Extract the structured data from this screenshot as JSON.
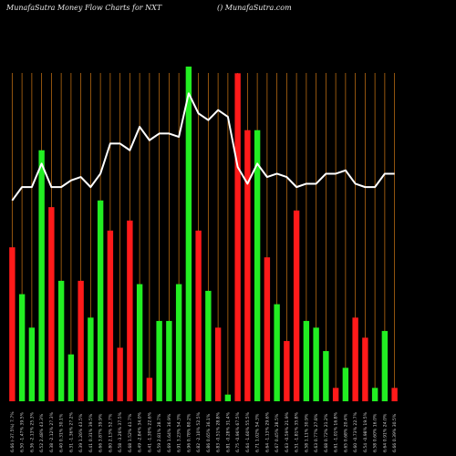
{
  "header": {
    "left": "MunafaSutra  Money Flow  Charts for NXT",
    "right": "() MunafaSutra.com"
  },
  "chart_data": {
    "type": "bar",
    "title": "MunafaSutra  Money Flow  Charts for NXT",
    "grid": "vertical",
    "ylim": [
      0,
      100
    ],
    "colors": {
      "up": "#22ee22",
      "down": "#ff1a1a",
      "line": "#ffffff",
      "grid": "#b86a12",
      "background": "#000000"
    },
    "bars": [
      {
        "h": 46,
        "c": "down"
      },
      {
        "h": 32,
        "c": "up"
      },
      {
        "h": 22,
        "c": "up"
      },
      {
        "h": 75,
        "c": "up"
      },
      {
        "h": 58,
        "c": "down"
      },
      {
        "h": 36,
        "c": "up"
      },
      {
        "h": 14,
        "c": "up"
      },
      {
        "h": 36,
        "c": "down"
      },
      {
        "h": 25,
        "c": "up"
      },
      {
        "h": 60,
        "c": "up"
      },
      {
        "h": 51,
        "c": "down"
      },
      {
        "h": 16,
        "c": "down"
      },
      {
        "h": 54,
        "c": "down"
      },
      {
        "h": 35,
        "c": "up"
      },
      {
        "h": 7,
        "c": "down"
      },
      {
        "h": 24,
        "c": "up"
      },
      {
        "h": 24,
        "c": "up"
      },
      {
        "h": 35,
        "c": "up"
      },
      {
        "h": 100,
        "c": "up"
      },
      {
        "h": 51,
        "c": "down"
      },
      {
        "h": 33,
        "c": "up"
      },
      {
        "h": 22,
        "c": "down"
      },
      {
        "h": 2,
        "c": "up"
      },
      {
        "h": 98,
        "c": "down"
      },
      {
        "h": 81,
        "c": "down"
      },
      {
        "h": 81,
        "c": "up"
      },
      {
        "h": 43,
        "c": "down"
      },
      {
        "h": 29,
        "c": "up"
      },
      {
        "h": 18,
        "c": "down"
      },
      {
        "h": 57,
        "c": "down"
      },
      {
        "h": 24,
        "c": "up"
      },
      {
        "h": 22,
        "c": "up"
      },
      {
        "h": 15,
        "c": "up"
      },
      {
        "h": 4,
        "c": "down"
      },
      {
        "h": 10,
        "c": "up"
      },
      {
        "h": 25,
        "c": "down"
      },
      {
        "h": 19,
        "c": "down"
      },
      {
        "h": 4,
        "c": "up"
      },
      {
        "h": 21,
        "c": "up"
      },
      {
        "h": 4,
        "c": "down"
      }
    ],
    "line": [
      60,
      64,
      64,
      71,
      64,
      64,
      66,
      67,
      64,
      68,
      77,
      77,
      75,
      82,
      78,
      80,
      80,
      79,
      92,
      86,
      84,
      87,
      85,
      70,
      65,
      71,
      67,
      68,
      67,
      64,
      65,
      65,
      68,
      68,
      69,
      65,
      64,
      64,
      68,
      68
    ],
    "x_labels": [
      "6.66 (-37.5%) 7.7%",
      "6.50 -1.47% 39.5%",
      "6.36 -2.13% 25.3%",
      "6.52 2.48% 43.3%",
      "6.38 -2.12% 27.3%",
      "6.40 0.31% 30.1%",
      "6.31 -1.36% 27.2%",
      "6.39 1.26% 43.5%",
      "6.41 0.31% 39.5%",
      "6.66 3.87% 39.9%",
      "6.80 2.13% 52.7%",
      "6.58 -3.26% 37.5%",
      "6.68 1.52% 41.7%",
      "6.49 -2.84% 34.0%",
      "6.41 -1.30% 22.6%",
      "6.59 2.81% 28.7%",
      "6.69 1.64% 36.9%",
      "6.91 3.23% 54.3%",
      "6.96 0.78% 80.2%",
      "6.82 -2.10% 52.5%",
      "6.86 0.65% 36.1%",
      "6.83 -0.51% 28.8%",
      "6.81 -0.28% 31.4%",
      "6.75 -0.96% 67.5%",
      "6.64 -1.60% 55.5%",
      "6.71 1.02% 54.3%",
      "6.64 -1.13% 29.6%",
      "6.67 0.45% 28.5%",
      "6.63 -0.59% 21.9%",
      "6.51 -1.81% 35.8%",
      "6.58 1.11% 30.9%",
      "6.63 0.77% 27.8%",
      "6.68 0.72% 21.2%",
      "6.61 -1.01% 16.8%",
      "6.65 0.68% 20.4%",
      "6.60 -0.73% 22.7%",
      "6.54 -0.98% 19.5%",
      "6.58 0.60% 16.0%",
      "6.64 0.91% 24.0%",
      "6.66 0.39% 30.5%"
    ]
  }
}
